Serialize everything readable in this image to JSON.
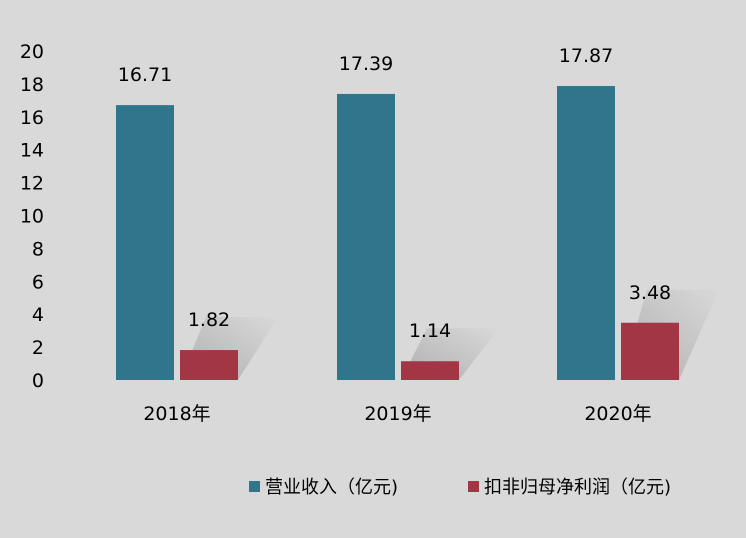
{
  "chart_data": {
    "type": "bar",
    "categories": [
      "2018年",
      "2019年",
      "2020年"
    ],
    "series": [
      {
        "name": "营业收入（亿元)",
        "values": [
          16.71,
          17.39,
          17.87
        ],
        "color": "#31758c"
      },
      {
        "name": "扣非归母净利润（亿元)",
        "values": [
          1.82,
          1.14,
          3.48
        ],
        "color": "#a23645"
      }
    ],
    "data_labels": [
      [
        "16.71",
        "17.39",
        "17.87"
      ],
      [
        "1.82",
        "1.14",
        "3.48"
      ]
    ],
    "y_ticks": [
      "0",
      "2",
      "4",
      "6",
      "8",
      "10",
      "12",
      "14",
      "16",
      "18",
      "20"
    ],
    "ylim": [
      0,
      20
    ],
    "title": "",
    "xlabel": "",
    "ylabel": "",
    "grid": false,
    "legend": "bottom"
  },
  "colors": {
    "background": "#d9d9d9"
  }
}
